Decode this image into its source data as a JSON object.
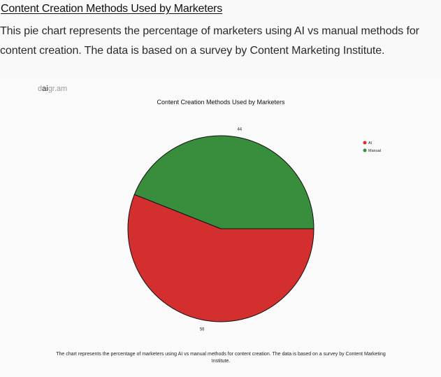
{
  "page": {
    "title": "Content Creation Methods Used by Marketers",
    "description": "This pie chart represents the percentage of marketers using AI vs manual methods for content creation. The data is based on a survey by Content Marketing Institute."
  },
  "brand": {
    "d": "d",
    "ai": "ai",
    "gram": "gr.am"
  },
  "chart_data": {
    "type": "pie",
    "title": "Content Creation Methods Used by Marketers",
    "slices": [
      {
        "label": "AI",
        "value": 56,
        "color": "#d32f2f"
      },
      {
        "label": "Manual",
        "value": 44,
        "color": "#388e3c"
      }
    ],
    "legend": "top-right",
    "caption": "The chart represents the percentage of marketers using AI vs manual methods for content creation. The data is based on a survey by Content Marketing Institute."
  }
}
